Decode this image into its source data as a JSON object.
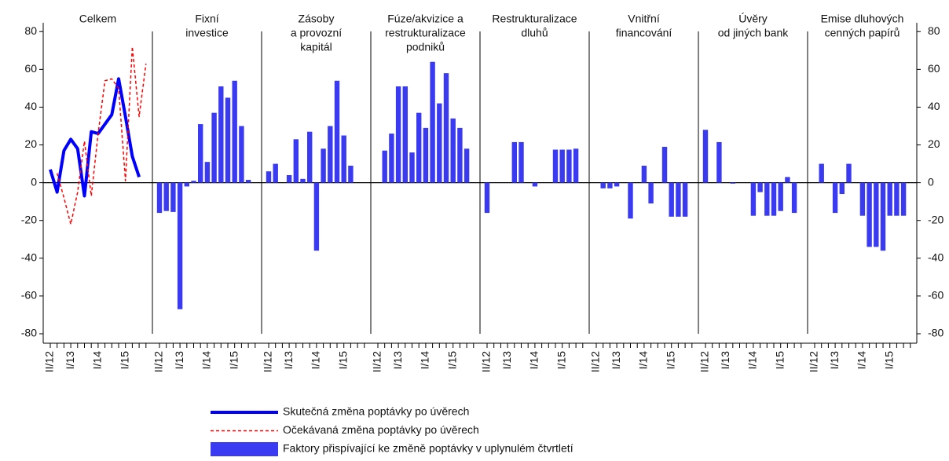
{
  "chart_data": {
    "type": "bar",
    "categories": [
      "II/12",
      null,
      null,
      "I/13",
      null,
      null,
      null,
      "I/14",
      null,
      null,
      null,
      "I/15",
      null,
      null,
      null
    ],
    "ylim": [
      -85,
      93
    ],
    "yticks": [
      -80,
      -60,
      -40,
      -20,
      0,
      20,
      40,
      60,
      80
    ],
    "bar_series": {
      "name": "Faktory přispívající ke změně poptávky v uplynulém čtvrtletí",
      "color": "#3a3af2"
    },
    "panels": [
      {
        "title": [
          "Celkem"
        ],
        "series": [
          {
            "name": "Skutečná změna poptávky po úvěrech",
            "color": "#0000ff",
            "style": "solid",
            "values": [
              7,
              -5,
              17,
              23,
              18,
              -7,
              27,
              26,
              31,
              36,
              55,
              35,
              14,
              3,
              null
            ]
          },
          {
            "name": "Očekávaná změna poptávky po úvěrech",
            "color": "#ff0000",
            "style": "dashed",
            "values": [
              null,
              5,
              -8,
              -22,
              -5,
              22,
              -7,
              26,
              54,
              55,
              50,
              1,
              72,
              35,
              63
            ]
          }
        ]
      },
      {
        "title": [
          "Fixní",
          "investice"
        ],
        "values": [
          -16,
          -15,
          -15.5,
          -67,
          -2,
          1,
          31,
          11,
          37,
          51,
          45,
          54,
          30,
          1.5,
          null
        ]
      },
      {
        "title": [
          "Zásoby",
          "a provozní",
          "kapitál"
        ],
        "values": [
          6,
          10,
          0,
          4,
          23,
          2,
          27,
          -36,
          18,
          30,
          54,
          25,
          9,
          0,
          null
        ]
      },
      {
        "title": [
          "Fúze/akvizice a",
          "restrukturalizace",
          "podniků"
        ],
        "values": [
          0,
          17,
          26,
          51,
          51,
          16,
          37,
          29,
          64,
          42,
          58,
          34,
          29,
          18,
          null
        ]
      },
      {
        "title": [
          "Restrukturalizace",
          "dluhů"
        ],
        "values": [
          -16,
          0,
          0,
          0,
          21.5,
          21.5,
          0,
          -2,
          0,
          0,
          17.5,
          17.5,
          17.5,
          18,
          null
        ]
      },
      {
        "title": [
          "Vnitřní",
          "financování"
        ],
        "values": [
          0,
          -3,
          -3,
          -2,
          0,
          -19,
          0,
          9,
          -11,
          0,
          19,
          -18,
          -18,
          -18,
          null
        ]
      },
      {
        "title": [
          "Úvěry",
          "od jiných bank"
        ],
        "values": [
          28,
          0,
          21.5,
          0,
          -0.5,
          0,
          0,
          -17.5,
          -5,
          -17.5,
          -17.5,
          -15,
          3,
          -16,
          null
        ]
      },
      {
        "title": [
          "Emise dluhových",
          "cenných papírů"
        ],
        "values": [
          0,
          10,
          0,
          -16,
          -6,
          10,
          0,
          -17.5,
          -34,
          -34,
          -36,
          -17.5,
          -17.5,
          -17.5,
          null
        ]
      }
    ]
  }
}
